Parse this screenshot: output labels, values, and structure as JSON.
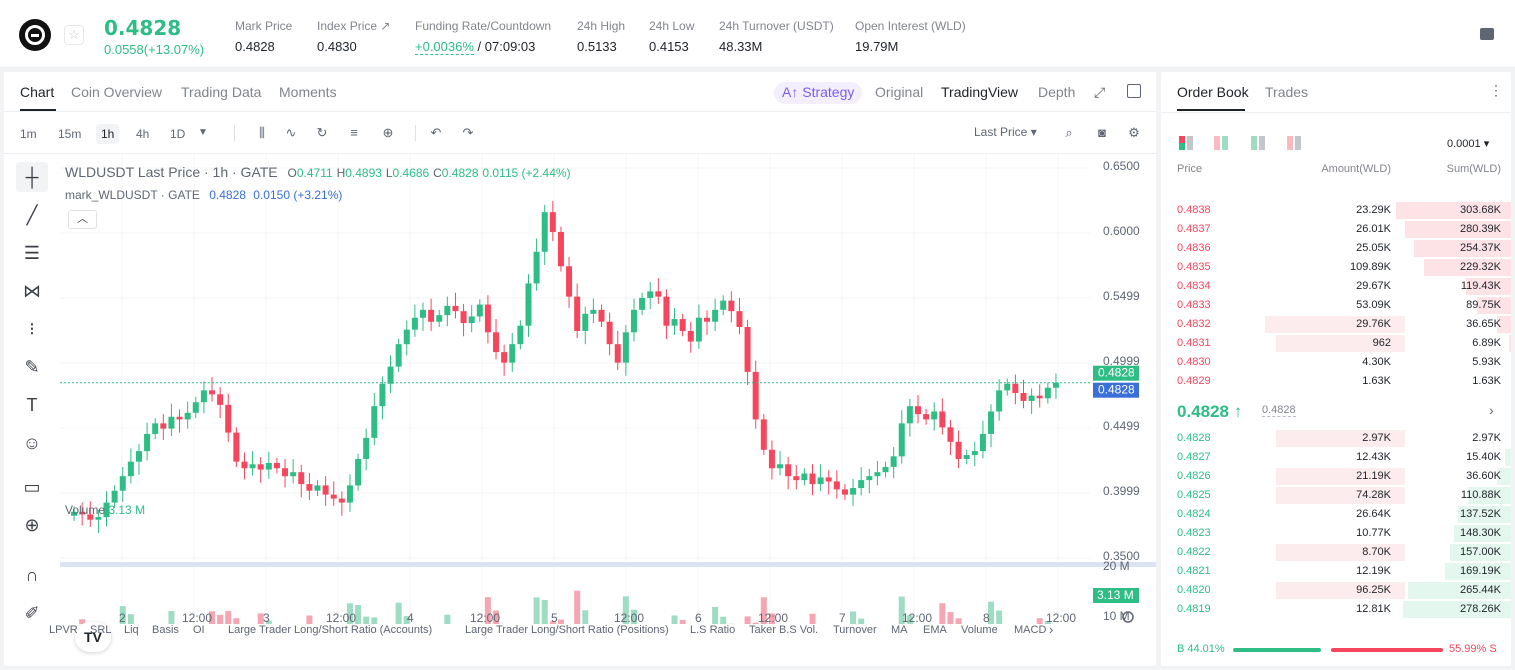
{
  "ticker": {
    "last_price": "0.4828",
    "change": "0.0558(+13.07%)",
    "stats": [
      {
        "label": "Mark Price",
        "value": "0.4828"
      },
      {
        "label": "Index Price ↗",
        "value": "0.4830"
      },
      {
        "label": "Funding Rate/Countdown",
        "value_rate": "+0.0036%",
        "value_countdown": "/ 07:09:03"
      },
      {
        "label": "24h High",
        "value": "0.5133"
      },
      {
        "label": "24h Low",
        "value": "0.4153"
      },
      {
        "label": "24h Turnover (USDT)",
        "value": "48.33M"
      },
      {
        "label": "Open Interest (WLD)",
        "value": "19.79M"
      }
    ]
  },
  "chart_tabs": [
    "Chart",
    "Coin Overview",
    "Trading Data",
    "Moments"
  ],
  "view_tabs": {
    "strategy": "A↑ Strategy",
    "original": "Original",
    "tradingview": "TradingView",
    "depth": "Depth"
  },
  "timeframes": [
    "1m",
    "15m",
    "1h",
    "4h",
    "1D"
  ],
  "active_timeframe": "1h",
  "price_type": "Last Price",
  "legend": {
    "symbol": "WLDUSDT Last Price · 1h · GATE",
    "o_label": "O",
    "o": "0.4711",
    "h_label": "H",
    "h": "0.4893",
    "l_label": "L",
    "l": "0.4686",
    "c_label": "C",
    "c": "0.4828",
    "change": "0.0115 (+2.44%)",
    "mark_symbol": "mark_WLDUSDT · GATE",
    "mark_value": "0.4828",
    "mark_change": "0.0150 (+3.21%)"
  },
  "volume": {
    "label": "Volume",
    "value": "3.13 M"
  },
  "chart_data": {
    "type": "candlestick",
    "price_axis_ticks": [
      "0.6500",
      "0.6000",
      "0.5499",
      "0.4999",
      "0.4499",
      "0.3999",
      "0.3500"
    ],
    "volume_axis_ticks": [
      "20 M",
      "10 M"
    ],
    "x_ticks": [
      "2",
      "12:00",
      "3",
      "12:00",
      "4",
      "12:00",
      "5",
      "12:00",
      "6",
      "12:00",
      "7",
      "12:00",
      "8",
      "12:00"
    ],
    "price_labels": {
      "last": "0.4828",
      "mark": "0.4828"
    },
    "volume_label": "3.13 M",
    "price_range": [
      0.35,
      0.65
    ],
    "close_series": [
      0.385,
      0.383,
      0.379,
      0.381,
      0.392,
      0.401,
      0.412,
      0.423,
      0.431,
      0.444,
      0.452,
      0.448,
      0.457,
      0.455,
      0.46,
      0.468,
      0.477,
      0.474,
      0.466,
      0.445,
      0.423,
      0.418,
      0.421,
      0.417,
      0.422,
      0.418,
      0.412,
      0.415,
      0.406,
      0.401,
      0.405,
      0.398,
      0.395,
      0.392,
      0.405,
      0.425,
      0.441,
      0.465,
      0.482,
      0.495,
      0.512,
      0.523,
      0.532,
      0.538,
      0.529,
      0.534,
      0.541,
      0.537,
      0.528,
      0.533,
      0.542,
      0.521,
      0.506,
      0.498,
      0.512,
      0.526,
      0.558,
      0.582,
      0.612,
      0.597,
      0.571,
      0.548,
      0.522,
      0.535,
      0.538,
      0.529,
      0.512,
      0.498,
      0.521,
      0.538,
      0.547,
      0.552,
      0.548,
      0.526,
      0.531,
      0.522,
      0.514,
      0.532,
      0.529,
      0.538,
      0.545,
      0.537,
      0.525,
      0.491,
      0.455,
      0.432,
      0.418,
      0.421,
      0.412,
      0.409,
      0.414,
      0.406,
      0.411,
      0.408,
      0.402,
      0.398,
      0.403,
      0.409,
      0.412,
      0.415,
      0.419,
      0.427,
      0.452,
      0.465,
      0.459,
      0.455,
      0.461,
      0.449,
      0.438,
      0.425,
      0.428,
      0.431,
      0.444,
      0.461,
      0.477,
      0.482,
      0.475,
      0.469,
      0.473,
      0.471,
      0.479,
      0.4828
    ]
  },
  "draw_tools": [
    "crosshair-icon",
    "trendline-icon",
    "horizontal-lines-icon",
    "pattern-icon",
    "fib-icon",
    "brush-icon",
    "text-icon",
    "emoji-icon",
    "ruler-icon",
    "zoom-in-icon",
    "magnet-icon",
    "pencil-icon"
  ],
  "indicators": [
    "LPVR",
    "SRL",
    "Liq",
    "Basis",
    "OI",
    "Large Trader Long/Short Ratio (Accounts)",
    "Large Trader Long/Short Ratio (Positions)",
    "L.S Ratio",
    "Taker B.S Vol.",
    "Turnover",
    "MA",
    "EMA",
    "Volume",
    "MACD"
  ],
  "orderbook": {
    "tabs": [
      "Order Book",
      "Trades"
    ],
    "precision": "0.0001",
    "headers": [
      "Price",
      "Amount(WLD)",
      "Sum(WLD)"
    ],
    "asks": [
      {
        "price": "0.4838",
        "amount": "23.29K",
        "sum": "303.68K",
        "amt_frac": 0.0,
        "sum_frac": 1.0
      },
      {
        "price": "0.4837",
        "amount": "26.01K",
        "sum": "280.39K",
        "amt_frac": 0.0,
        "sum_frac": 0.92
      },
      {
        "price": "0.4836",
        "amount": "25.05K",
        "sum": "254.37K",
        "amt_frac": 0.0,
        "sum_frac": 0.84
      },
      {
        "price": "0.4835",
        "amount": "109.89K",
        "sum": "229.32K",
        "amt_frac": 0.0,
        "sum_frac": 0.76
      },
      {
        "price": "0.4834",
        "amount": "29.67K",
        "sum": "119.43K",
        "amt_frac": 0.0,
        "sum_frac": 0.39
      },
      {
        "price": "0.4833",
        "amount": "53.09K",
        "sum": "89.75K",
        "amt_frac": 0.0,
        "sum_frac": 0.3
      },
      {
        "price": "0.4832",
        "amount": "29.76K",
        "sum": "36.65K",
        "amt_frac": 0.4,
        "sum_frac": 0.12
      },
      {
        "price": "0.4831",
        "amount": "962",
        "sum": "6.89K",
        "amt_frac": 0.37,
        "sum_frac": 0.02
      },
      {
        "price": "0.4830",
        "amount": "4.30K",
        "sum": "5.93K",
        "amt_frac": 0.0,
        "sum_frac": 0.0
      },
      {
        "price": "0.4829",
        "amount": "1.63K",
        "sum": "1.63K",
        "amt_frac": 0.0,
        "sum_frac": 0.0
      }
    ],
    "mid_price": "0.4828 ↑",
    "mid_mark": "0.4828",
    "bids": [
      {
        "price": "0.4828",
        "amount": "2.97K",
        "sum": "2.97K",
        "amt_frac": 0.37,
        "sum_frac": 0.0
      },
      {
        "price": "0.4827",
        "amount": "12.43K",
        "sum": "15.40K",
        "amt_frac": 0.0,
        "sum_frac": 0.05
      },
      {
        "price": "0.4826",
        "amount": "21.19K",
        "sum": "36.60K",
        "amt_frac": 0.37,
        "sum_frac": 0.12
      },
      {
        "price": "0.4825",
        "amount": "74.28K",
        "sum": "110.88K",
        "amt_frac": 0.37,
        "sum_frac": 0.37
      },
      {
        "price": "0.4824",
        "amount": "26.64K",
        "sum": "137.52K",
        "amt_frac": 0.0,
        "sum_frac": 0.46
      },
      {
        "price": "0.4823",
        "amount": "10.77K",
        "sum": "148.30K",
        "amt_frac": 0.0,
        "sum_frac": 0.5
      },
      {
        "price": "0.4822",
        "amount": "8.70K",
        "sum": "157.00K",
        "amt_frac": 0.37,
        "sum_frac": 0.53
      },
      {
        "price": "0.4821",
        "amount": "12.19K",
        "sum": "169.19K",
        "amt_frac": 0.0,
        "sum_frac": 0.57
      },
      {
        "price": "0.4820",
        "amount": "96.25K",
        "sum": "265.44K",
        "amt_frac": 0.37,
        "sum_frac": 0.9
      },
      {
        "price": "0.4819",
        "amount": "12.81K",
        "sum": "278.26K",
        "amt_frac": 0.0,
        "sum_frac": 0.94
      }
    ],
    "buy_ratio": "B 44.01%",
    "sell_ratio": "55.99% S",
    "buy_frac": 0.4401
  },
  "colors": {
    "up": "#2ebd85",
    "down": "#f6465d",
    "accent": "#7b5cf0",
    "mark": "#3a6fd8"
  }
}
